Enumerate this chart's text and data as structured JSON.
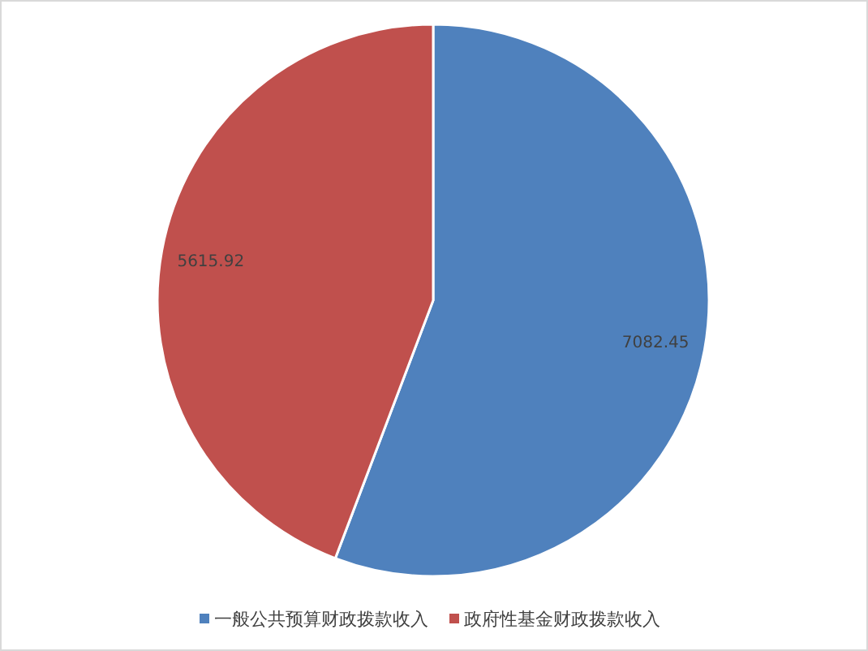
{
  "chart_data": {
    "type": "pie",
    "categories": [
      "一般公共预算财政拨款收入",
      "政府性基金财政拨款收入"
    ],
    "values": [
      7082.45,
      5615.92
    ],
    "colors": [
      "#4f81bd",
      "#c0504d"
    ],
    "data_labels": true,
    "legend": "bottom"
  }
}
